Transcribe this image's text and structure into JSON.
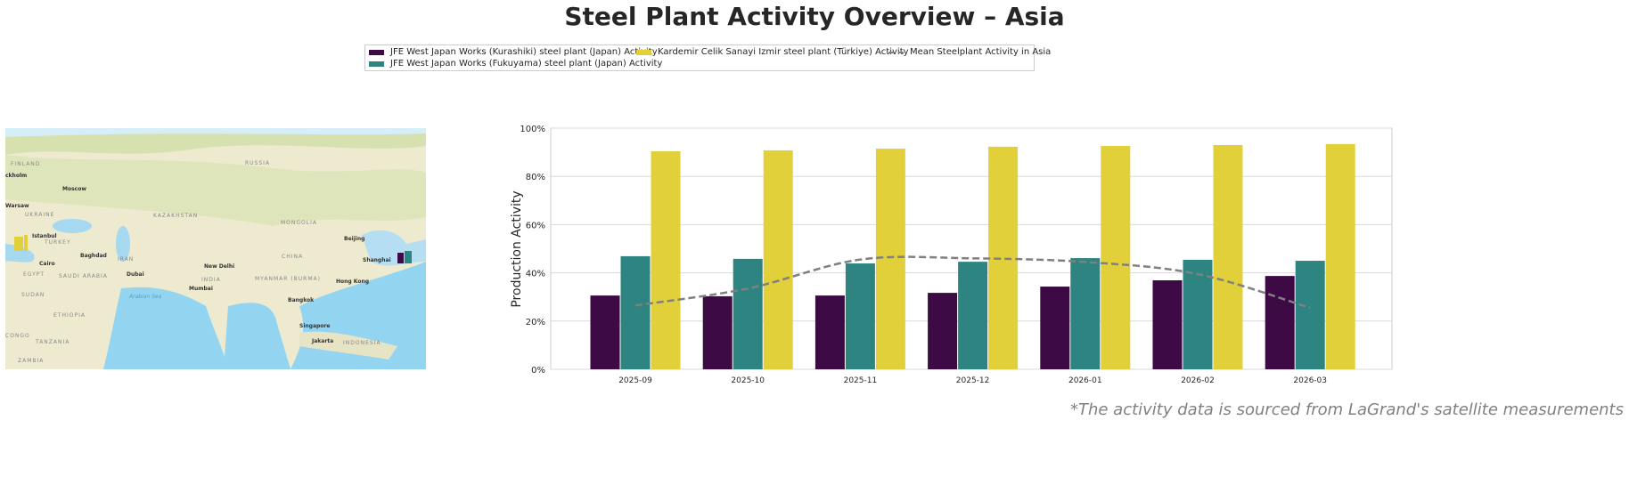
{
  "title": "Steel Plant Activity Overview – Asia",
  "footer": "*The activity data is sourced from LaGrand's satellite measurements",
  "legend": [
    {
      "label": "JFE West Japan Works (Kurashiki) steel plant (Japan) Activity",
      "color": "#3e0a46"
    },
    {
      "label": "JFE West Japan Works (Fukuyama) steel plant (Japan) Activity",
      "color": "#2e8480"
    },
    {
      "label": "Kardemir Celik Sanayi Izmir steel plant (Türkiye) Activity",
      "color": "#e2d03b"
    },
    {
      "label": "Mean Steelplant Activity in Asia",
      "color": "#808080",
      "style": "dashed"
    }
  ],
  "map": {
    "labels": [
      "FINLAND",
      "ckholm",
      "Moscow",
      "Warsaw",
      "UKRAINE",
      "RUSSIA",
      "KAZAKHSTAN",
      "MONGOLIA",
      "Istanbul",
      "TURKEY",
      "Baghdad",
      "IRAN",
      "Cairo",
      "EGYPT",
      "SAUDI ARABIA",
      "Dubai",
      "New Delhi",
      "CHINA",
      "INDIA",
      "MYANMAR (BURMA)",
      "Mumbai",
      "Beijing",
      "Shanghai",
      "Hong Kong",
      "Bangkok",
      "SUDAN",
      "ETHIOPIA",
      "Arabian Sea",
      "Singapore",
      "Jakarta",
      "INDONESIA",
      "CONGO",
      "TANZANIA",
      "ZAMBIA"
    ]
  },
  "chart_data": {
    "type": "bar",
    "title": "",
    "xlabel": "",
    "ylabel": "Production Activity",
    "ylim": [
      0,
      100
    ],
    "yticks": [
      "0%",
      "20%",
      "40%",
      "60%",
      "80%",
      "100%"
    ],
    "grid": true,
    "legend_position": "top",
    "categories": [
      "2025-09",
      "2025-10",
      "2025-11",
      "2025-12",
      "2026-01",
      "2026-02",
      "2026-03"
    ],
    "series": [
      {
        "name": "JFE West Japan Works (Kurashiki) steel plant (Japan) Activity",
        "color": "#3e0a46",
        "values": [
          30.6,
          30.3,
          30.6,
          31.7,
          34.3,
          36.9,
          38.7
        ]
      },
      {
        "name": "JFE West Japan Works (Fukuyama) steel plant (Japan) Activity",
        "color": "#2e8480",
        "values": [
          46.9,
          45.8,
          43.9,
          44.6,
          46.1,
          45.4,
          45.0
        ]
      },
      {
        "name": "Kardemir Celik Sanayi Izmir steel plant (Türkiye) Activity",
        "color": "#e2d03b",
        "values": [
          90.4,
          90.8,
          91.5,
          92.3,
          92.6,
          93.0,
          93.4
        ]
      },
      {
        "name": "Mean Steelplant Activity in Asia",
        "type": "line",
        "style": "dashed",
        "color": "#808080",
        "values": [
          26.5,
          33.5,
          45.5,
          46.0,
          44.5,
          39.5,
          25.5
        ]
      }
    ]
  }
}
